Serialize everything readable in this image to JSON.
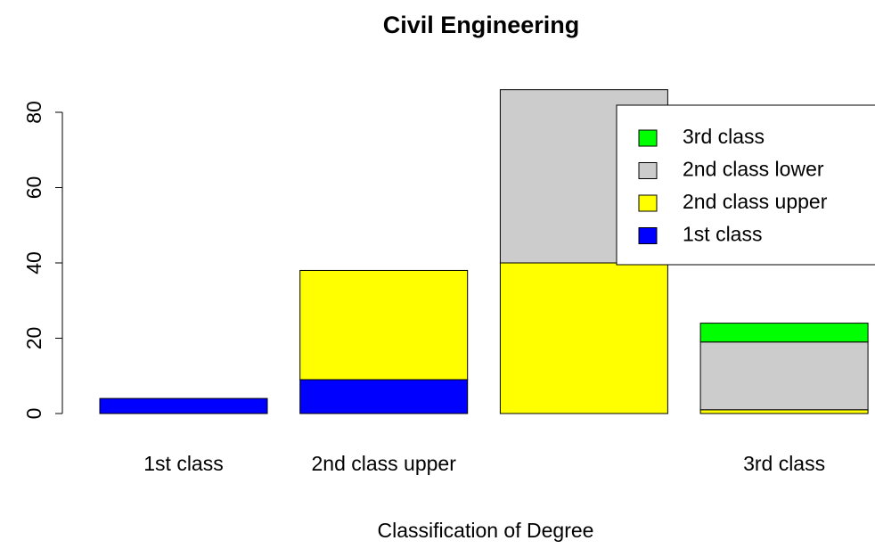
{
  "chart_data": {
    "type": "bar",
    "stacked": true,
    "title": "Civil Engineering",
    "x_label": "Classification of Degree",
    "categories": [
      "1st class",
      "2nd class upper",
      null,
      "3rd class"
    ],
    "series": [
      {
        "name": "1st class",
        "color": "#0000ff",
        "values": [
          4,
          9,
          0,
          0
        ]
      },
      {
        "name": "2nd class upper",
        "color": "#ffff00",
        "values": [
          0,
          29,
          40,
          1
        ]
      },
      {
        "name": "2nd class lower",
        "color": "#cccccc",
        "values": [
          0,
          0,
          46,
          18
        ]
      },
      {
        "name": "3rd class",
        "color": "#00ff00",
        "values": [
          0,
          0,
          0,
          5
        ]
      }
    ],
    "ylim": [
      0,
      90
    ],
    "yticks": [
      0,
      20,
      40,
      60,
      80
    ],
    "legend": "top-right"
  }
}
